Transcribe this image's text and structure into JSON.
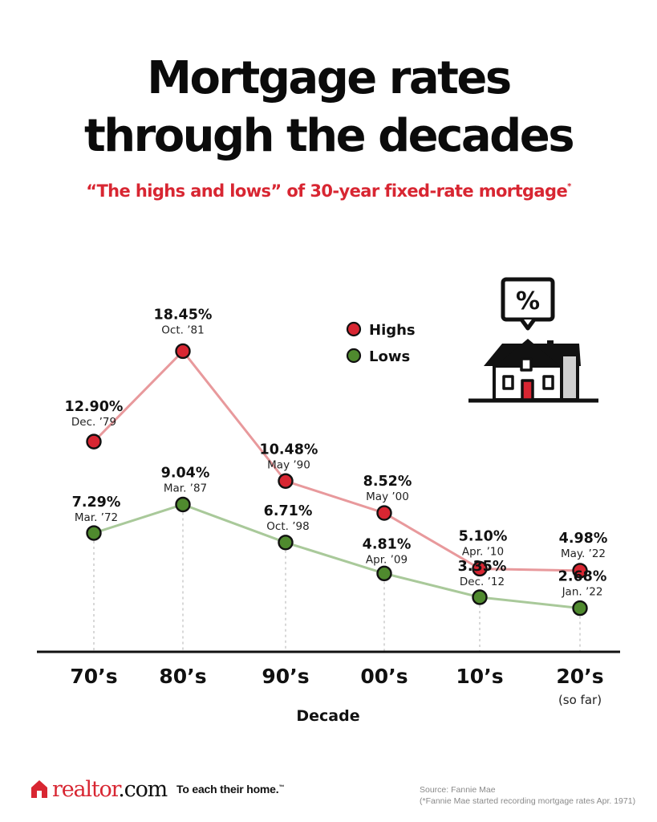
{
  "header": {
    "title_line1": "Mortgage rates",
    "title_line2": "through the decades",
    "subtitle": "“The highs and lows” of 30-year fixed-rate mortgage",
    "subtitle_mark": "*"
  },
  "chart_data": {
    "type": "line",
    "title": "Mortgage rates through the decades",
    "subtitle": "“The highs and lows” of 30-year fixed-rate mortgage*",
    "xlabel": "Decade",
    "ylabel": "",
    "categories": [
      "70’s",
      "80’s",
      "90’s",
      "00’s",
      "10’s",
      "20’s"
    ],
    "category_notes": [
      "",
      "",
      "",
      "",
      "",
      "(so far)"
    ],
    "ylim": [
      0,
      20
    ],
    "grid": false,
    "legend_position": "top-center",
    "series": [
      {
        "name": "Highs",
        "color": "#d82632",
        "line_color": "#e8999c",
        "values": [
          12.9,
          18.45,
          10.48,
          8.52,
          5.1,
          4.98
        ],
        "labels": [
          "12.90%",
          "18.45%",
          "10.48%",
          "8.52%",
          "5.10%",
          "4.98%"
        ],
        "dates": [
          "Dec. ’79",
          "Oct. ’81",
          "May ’90",
          "May ’00",
          "Apr. ’10",
          "May. ’22"
        ]
      },
      {
        "name": "Lows",
        "color": "#4f8a2e",
        "line_color": "#a9c99a",
        "values": [
          7.29,
          9.04,
          6.71,
          4.81,
          3.35,
          2.68
        ],
        "labels": [
          "7.29%",
          "9.04%",
          "6.71%",
          "4.81%",
          "3.35%",
          "2.68%"
        ],
        "dates": [
          "Mar. ’72",
          "Mar. ’87",
          "Oct. ’98",
          "Apr. ’09",
          "Dec. ’12",
          "Jan. ’22"
        ]
      }
    ]
  },
  "icons": {
    "house": "house-with-percent-icon"
  },
  "footer": {
    "brand": "realtor",
    "brand_suffix": ".com",
    "tagline": "To each their home.",
    "tagline_mark": "™",
    "source": "Source: Fannie Mae",
    "source_note": "(*Fannie Mae started recording mortgage rates Apr. 1971)"
  }
}
